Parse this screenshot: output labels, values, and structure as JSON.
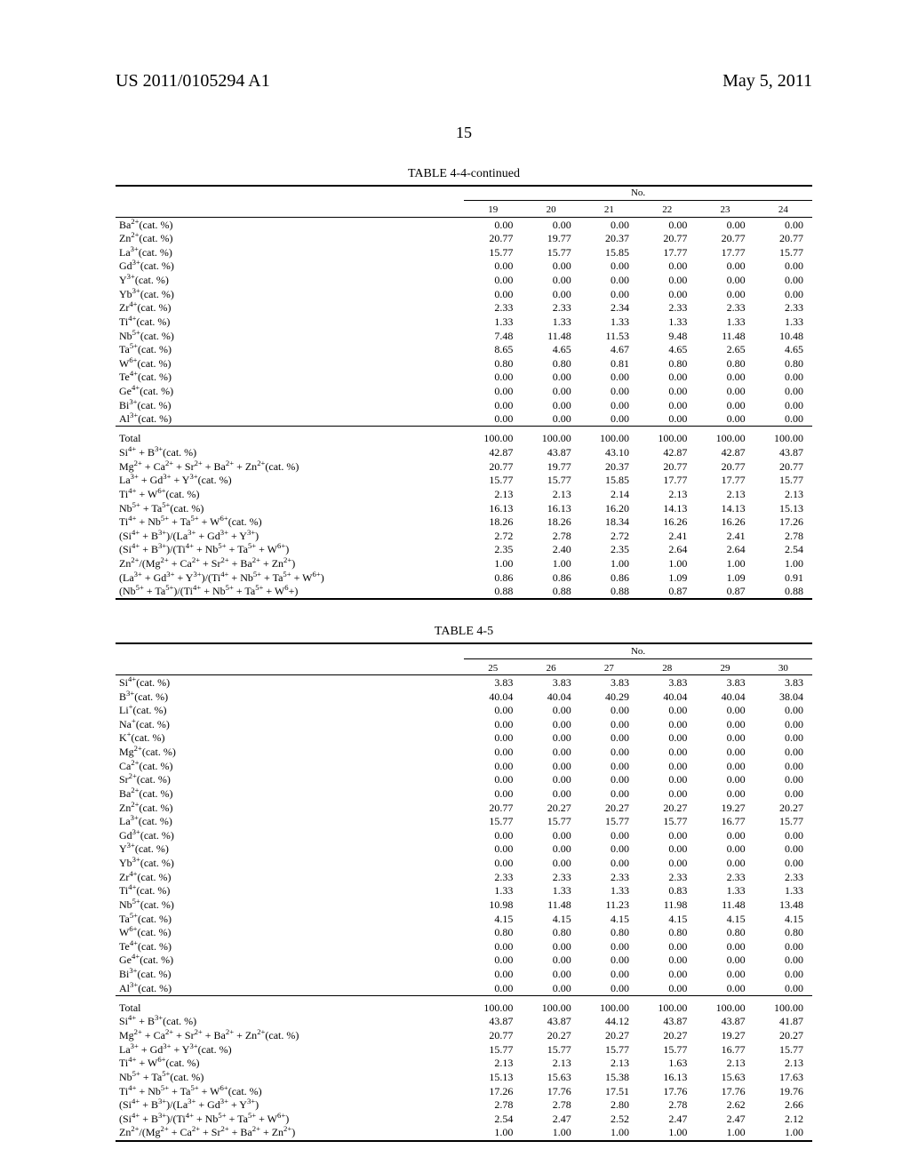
{
  "header": {
    "left": "US 2011/0105294 A1",
    "right": "May 5, 2011"
  },
  "page_number": "15",
  "tables": [
    {
      "title": "TABLE 4-4-continued",
      "col_heading": "No.",
      "col_labels": [
        "19",
        "20",
        "21",
        "22",
        "23",
        "24"
      ],
      "sections": [
        {
          "rows": [
            {
              "label": "Ba<sup>2+</sup>(cat. %)",
              "vals": [
                "0.00",
                "0.00",
                "0.00",
                "0.00",
                "0.00",
                "0.00"
              ]
            },
            {
              "label": "Zn<sup>2+</sup>(cat. %)",
              "vals": [
                "20.77",
                "19.77",
                "20.37",
                "20.77",
                "20.77",
                "20.77"
              ]
            },
            {
              "label": "La<sup>3+</sup>(cat. %)",
              "vals": [
                "15.77",
                "15.77",
                "15.85",
                "17.77",
                "17.77",
                "15.77"
              ]
            },
            {
              "label": "Gd<sup>3+</sup>(cat. %)",
              "vals": [
                "0.00",
                "0.00",
                "0.00",
                "0.00",
                "0.00",
                "0.00"
              ]
            },
            {
              "label": "Y<sup>3+</sup>(cat. %)",
              "vals": [
                "0.00",
                "0.00",
                "0.00",
                "0.00",
                "0.00",
                "0.00"
              ]
            },
            {
              "label": "Yb<sup>3+</sup>(cat. %)",
              "vals": [
                "0.00",
                "0.00",
                "0.00",
                "0.00",
                "0.00",
                "0.00"
              ]
            },
            {
              "label": "Zr<sup>4+</sup>(cat. %)",
              "vals": [
                "2.33",
                "2.33",
                "2.34",
                "2.33",
                "2.33",
                "2.33"
              ]
            },
            {
              "label": "Ti<sup>4+</sup>(cat. %)",
              "vals": [
                "1.33",
                "1.33",
                "1.33",
                "1.33",
                "1.33",
                "1.33"
              ]
            },
            {
              "label": "Nb<sup>5+</sup>(cat. %)",
              "vals": [
                "7.48",
                "11.48",
                "11.53",
                "9.48",
                "11.48",
                "10.48"
              ]
            },
            {
              "label": "Ta<sup>5+</sup>(cat. %)",
              "vals": [
                "8.65",
                "4.65",
                "4.67",
                "4.65",
                "2.65",
                "4.65"
              ]
            },
            {
              "label": "W<sup>6+</sup>(cat. %)",
              "vals": [
                "0.80",
                "0.80",
                "0.81",
                "0.80",
                "0.80",
                "0.80"
              ]
            },
            {
              "label": "Te<sup>4+</sup>(cat. %)",
              "vals": [
                "0.00",
                "0.00",
                "0.00",
                "0.00",
                "0.00",
                "0.00"
              ]
            },
            {
              "label": "Ge<sup>4+</sup>(cat. %)",
              "vals": [
                "0.00",
                "0.00",
                "0.00",
                "0.00",
                "0.00",
                "0.00"
              ]
            },
            {
              "label": "Bi<sup>3+</sup>(cat. %)",
              "vals": [
                "0.00",
                "0.00",
                "0.00",
                "0.00",
                "0.00",
                "0.00"
              ]
            },
            {
              "label": "Al<sup>3+</sup>(cat. %)",
              "vals": [
                "0.00",
                "0.00",
                "0.00",
                "0.00",
                "0.00",
                "0.00"
              ]
            }
          ]
        },
        {
          "rows": [
            {
              "label": "Total",
              "vals": [
                "100.00",
                "100.00",
                "100.00",
                "100.00",
                "100.00",
                "100.00"
              ]
            },
            {
              "label": "Si<sup>4+</sup> + B<sup>3+</sup>(cat. %)",
              "vals": [
                "42.87",
                "43.87",
                "43.10",
                "42.87",
                "42.87",
                "43.87"
              ]
            },
            {
              "label": "Mg<sup>2+</sup> + Ca<sup>2+</sup> + Sr<sup>2+</sup> + Ba<sup>2+</sup> + Zn<sup>2+</sup>(cat. %)",
              "vals": [
                "20.77",
                "19.77",
                "20.37",
                "20.77",
                "20.77",
                "20.77"
              ]
            },
            {
              "label": "La<sup>3+</sup> + Gd<sup>3+</sup> + Y<sup>3+</sup>(cat. %)",
              "vals": [
                "15.77",
                "15.77",
                "15.85",
                "17.77",
                "17.77",
                "15.77"
              ]
            },
            {
              "label": "Ti<sup>4+</sup> + W<sup>6+</sup>(cat. %)",
              "vals": [
                "2.13",
                "2.13",
                "2.14",
                "2.13",
                "2.13",
                "2.13"
              ]
            },
            {
              "label": "Nb<sup>5+</sup> + Ta<sup>5+</sup>(cat. %)",
              "vals": [
                "16.13",
                "16.13",
                "16.20",
                "14.13",
                "14.13",
                "15.13"
              ]
            },
            {
              "label": "Ti<sup>4+</sup> + Nb<sup>5+</sup> + Ta<sup>5+</sup> + W<sup>6+</sup>(cat. %)",
              "vals": [
                "18.26",
                "18.26",
                "18.34",
                "16.26",
                "16.26",
                "17.26"
              ]
            },
            {
              "label": "(Si<sup>4+</sup> + B<sup>3+</sup>)/(La<sup>3+</sup> + Gd<sup>3+</sup> + Y<sup>3+</sup>)",
              "vals": [
                "2.72",
                "2.78",
                "2.72",
                "2.41",
                "2.41",
                "2.78"
              ]
            },
            {
              "label": "(Si<sup>4+</sup> + B<sup>3+</sup>)/(Ti<sup>4+</sup> + Nb<sup>5+</sup> + Ta<sup>5+</sup> + W<sup>6+</sup>)",
              "vals": [
                "2.35",
                "2.40",
                "2.35",
                "2.64",
                "2.64",
                "2.54"
              ]
            },
            {
              "label": "Zn<sup>2+</sup>/(Mg<sup>2+</sup> + Ca<sup>2+</sup> + Sr<sup>2+</sup> + Ba<sup>2+</sup> + Zn<sup>2+</sup>)",
              "vals": [
                "1.00",
                "1.00",
                "1.00",
                "1.00",
                "1.00",
                "1.00"
              ]
            },
            {
              "label": "(La<sup>3+</sup> + Gd<sup>3+</sup> + Y<sup>3+</sup>)/(Ti<sup>4+</sup> + Nb<sup>5+</sup> + Ta<sup>5+</sup> + W<sup>6+</sup>)",
              "vals": [
                "0.86",
                "0.86",
                "0.86",
                "1.09",
                "1.09",
                "0.91"
              ]
            },
            {
              "label": "(Nb<sup>5+</sup> + Ta<sup>5+</sup>)/(Ti<sup>4+</sup> + Nb<sup>5+</sup> + Ta<sup>5+</sup> + W<sup>6</sup>+)",
              "vals": [
                "0.88",
                "0.88",
                "0.88",
                "0.87",
                "0.87",
                "0.88"
              ]
            }
          ]
        }
      ]
    },
    {
      "title": "TABLE 4-5",
      "col_heading": "No.",
      "col_labels": [
        "25",
        "26",
        "27",
        "28",
        "29",
        "30"
      ],
      "sections": [
        {
          "rows": [
            {
              "label": "Si<sup>4+</sup>(cat. %)",
              "vals": [
                "3.83",
                "3.83",
                "3.83",
                "3.83",
                "3.83",
                "3.83"
              ]
            },
            {
              "label": "B<sup>3+</sup>(cat. %)",
              "vals": [
                "40.04",
                "40.04",
                "40.29",
                "40.04",
                "40.04",
                "38.04"
              ]
            },
            {
              "label": "Li<sup>+</sup>(cat. %)",
              "vals": [
                "0.00",
                "0.00",
                "0.00",
                "0.00",
                "0.00",
                "0.00"
              ]
            },
            {
              "label": "Na<sup>+</sup>(cat. %)",
              "vals": [
                "0.00",
                "0.00",
                "0.00",
                "0.00",
                "0.00",
                "0.00"
              ]
            },
            {
              "label": "K<sup>+</sup>(cat. %)",
              "vals": [
                "0.00",
                "0.00",
                "0.00",
                "0.00",
                "0.00",
                "0.00"
              ]
            },
            {
              "label": "Mg<sup>2+</sup>(cat. %)",
              "vals": [
                "0.00",
                "0.00",
                "0.00",
                "0.00",
                "0.00",
                "0.00"
              ]
            },
            {
              "label": "Ca<sup>2+</sup>(cat. %)",
              "vals": [
                "0.00",
                "0.00",
                "0.00",
                "0.00",
                "0.00",
                "0.00"
              ]
            },
            {
              "label": "Sr<sup>2+</sup>(cat. %)",
              "vals": [
                "0.00",
                "0.00",
                "0.00",
                "0.00",
                "0.00",
                "0.00"
              ]
            },
            {
              "label": "Ba<sup>2+</sup>(cat. %)",
              "vals": [
                "0.00",
                "0.00",
                "0.00",
                "0.00",
                "0.00",
                "0.00"
              ]
            },
            {
              "label": "Zn<sup>2+</sup>(cat. %)",
              "vals": [
                "20.77",
                "20.27",
                "20.27",
                "20.27",
                "19.27",
                "20.27"
              ]
            },
            {
              "label": "La<sup>3+</sup>(cat. %)",
              "vals": [
                "15.77",
                "15.77",
                "15.77",
                "15.77",
                "16.77",
                "15.77"
              ]
            },
            {
              "label": "Gd<sup>3+</sup>(cat. %)",
              "vals": [
                "0.00",
                "0.00",
                "0.00",
                "0.00",
                "0.00",
                "0.00"
              ]
            },
            {
              "label": "Y<sup>3+</sup>(cat. %)",
              "vals": [
                "0.00",
                "0.00",
                "0.00",
                "0.00",
                "0.00",
                "0.00"
              ]
            },
            {
              "label": "Yb<sup>3+</sup>(cat. %)",
              "vals": [
                "0.00",
                "0.00",
                "0.00",
                "0.00",
                "0.00",
                "0.00"
              ]
            },
            {
              "label": "Zr<sup>4+</sup>(cat. %)",
              "vals": [
                "2.33",
                "2.33",
                "2.33",
                "2.33",
                "2.33",
                "2.33"
              ]
            },
            {
              "label": "Ti<sup>4+</sup>(cat. %)",
              "vals": [
                "1.33",
                "1.33",
                "1.33",
                "0.83",
                "1.33",
                "1.33"
              ]
            },
            {
              "label": "Nb<sup>5+</sup>(cat. %)",
              "vals": [
                "10.98",
                "11.48",
                "11.23",
                "11.98",
                "11.48",
                "13.48"
              ]
            },
            {
              "label": "Ta<sup>5+</sup>(cat. %)",
              "vals": [
                "4.15",
                "4.15",
                "4.15",
                "4.15",
                "4.15",
                "4.15"
              ]
            },
            {
              "label": "W<sup>6+</sup>(cat. %)",
              "vals": [
                "0.80",
                "0.80",
                "0.80",
                "0.80",
                "0.80",
                "0.80"
              ]
            },
            {
              "label": "Te<sup>4+</sup>(cat. %)",
              "vals": [
                "0.00",
                "0.00",
                "0.00",
                "0.00",
                "0.00",
                "0.00"
              ]
            },
            {
              "label": "Ge<sup>4+</sup>(cat. %)",
              "vals": [
                "0.00",
                "0.00",
                "0.00",
                "0.00",
                "0.00",
                "0.00"
              ]
            },
            {
              "label": "Bi<sup>3+</sup>(cat. %)",
              "vals": [
                "0.00",
                "0.00",
                "0.00",
                "0.00",
                "0.00",
                "0.00"
              ]
            },
            {
              "label": "Al<sup>3+</sup>(cat. %)",
              "vals": [
                "0.00",
                "0.00",
                "0.00",
                "0.00",
                "0.00",
                "0.00"
              ]
            }
          ]
        },
        {
          "rows": [
            {
              "label": "Total",
              "vals": [
                "100.00",
                "100.00",
                "100.00",
                "100.00",
                "100.00",
                "100.00"
              ]
            },
            {
              "label": "Si<sup>4+</sup> + B<sup>3+</sup>(cat. %)",
              "vals": [
                "43.87",
                "43.87",
                "44.12",
                "43.87",
                "43.87",
                "41.87"
              ]
            },
            {
              "label": "Mg<sup>2+</sup> + Ca<sup>2+</sup> + Sr<sup>2+</sup> + Ba<sup>2+</sup> + Zn<sup>2+</sup>(cat. %)",
              "vals": [
                "20.77",
                "20.27",
                "20.27",
                "20.27",
                "19.27",
                "20.27"
              ]
            },
            {
              "label": "La<sup>3+</sup> + Gd<sup>3+</sup> + Y<sup>3+</sup>(cat. %)",
              "vals": [
                "15.77",
                "15.77",
                "15.77",
                "15.77",
                "16.77",
                "15.77"
              ]
            },
            {
              "label": "Ti<sup>4+</sup> + W<sup>6+</sup>(cat. %)",
              "vals": [
                "2.13",
                "2.13",
                "2.13",
                "1.63",
                "2.13",
                "2.13"
              ]
            },
            {
              "label": "Nb<sup>5+</sup> + Ta<sup>5+</sup>(cat. %)",
              "vals": [
                "15.13",
                "15.63",
                "15.38",
                "16.13",
                "15.63",
                "17.63"
              ]
            },
            {
              "label": "Ti<sup>4+</sup> + Nb<sup>5+</sup> + Ta<sup>5+</sup> + W<sup>6+</sup>(cat. %)",
              "vals": [
                "17.26",
                "17.76",
                "17.51",
                "17.76",
                "17.76",
                "19.76"
              ]
            },
            {
              "label": "(Si<sup>4+</sup> + B<sup>3+</sup>)/(La<sup>3+</sup> + Gd<sup>3+</sup> + Y<sup>3+</sup>)",
              "vals": [
                "2.78",
                "2.78",
                "2.80",
                "2.78",
                "2.62",
                "2.66"
              ]
            },
            {
              "label": "(Si<sup>4+</sup> + B<sup>3+</sup>)/(Ti<sup>4+</sup> + Nb<sup>5+</sup> + Ta<sup>5+</sup> + W<sup>6+</sup>)",
              "vals": [
                "2.54",
                "2.47",
                "2.52",
                "2.47",
                "2.47",
                "2.12"
              ]
            },
            {
              "label": "Zn<sup>2+</sup>/(Mg<sup>2+</sup> + Ca<sup>2+</sup> + Sr<sup>2+</sup> + Ba<sup>2+</sup> + Zn<sup>2+</sup>)",
              "vals": [
                "1.00",
                "1.00",
                "1.00",
                "1.00",
                "1.00",
                "1.00"
              ]
            }
          ]
        }
      ]
    }
  ]
}
